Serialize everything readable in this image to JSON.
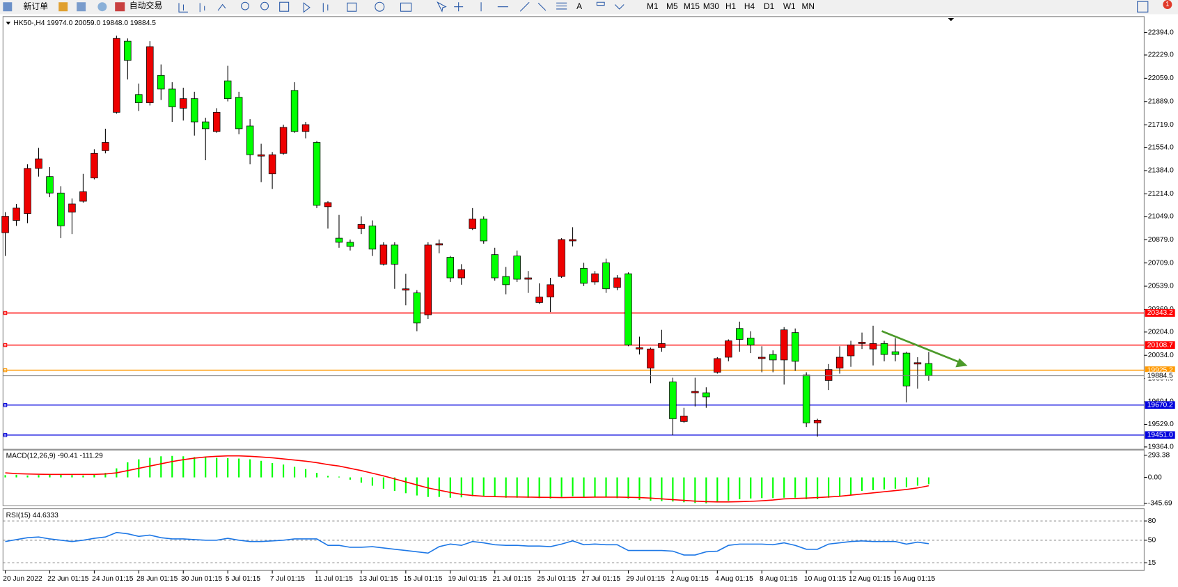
{
  "toolbar": {
    "new_order": "新订单",
    "auto_trading": "自动交易",
    "text_tool": "A",
    "timeframes": [
      "M1",
      "M5",
      "M15",
      "M30",
      "H1",
      "H4",
      "D1",
      "W1",
      "MN"
    ],
    "notification_count": 1
  },
  "chart_data": [
    {
      "type": "candlestick",
      "title": "HK50-,H4  19974.0 20059.0 19848.0 19884.5",
      "categories": [
        "20 Jun 2022",
        null,
        null,
        null,
        "22 Jun 01:15",
        null,
        null,
        null,
        "24 Jun 01:15",
        null,
        null,
        null,
        "28 Jun 01:15",
        null,
        null,
        null,
        "30 Jun 01:15",
        null,
        null,
        null,
        "5 Jul 01:15",
        null,
        null,
        null,
        "7 Jul 01:15",
        null,
        null,
        null,
        "11 Jul 01:15",
        null,
        null,
        null,
        "13 Jul 01:15",
        null,
        null,
        null,
        "15 Jul 01:15",
        null,
        null,
        null,
        "19 Jul 01:15",
        null,
        null,
        null,
        "21 Jul 01:15",
        null,
        null,
        null,
        "25 Jul 01:15",
        null,
        null,
        null,
        "27 Jul 01:15",
        null,
        null,
        null,
        "29 Jul 01:15",
        null,
        null,
        null,
        "2 Aug 01:15",
        null,
        null,
        null,
        "4 Aug 01:15",
        null,
        null,
        null,
        "8 Aug 01:15",
        null,
        null,
        null,
        "10 Aug 01:15",
        null,
        null,
        null,
        "12 Aug 01:15",
        null,
        null,
        null,
        "16 Aug 01:15",
        null,
        null,
        null
      ],
      "open": [
        20930,
        21020,
        21070,
        21400,
        21340,
        21220,
        21080,
        21160,
        21330,
        21530,
        21810,
        22330,
        21940,
        21880,
        22080,
        21980,
        21840,
        21910,
        21740,
        21670,
        22040,
        21920,
        21710,
        21490,
        21360,
        21510,
        21970,
        21670,
        21590,
        21120,
        20890,
        20860,
        20960,
        20980,
        20700,
        20840,
        20510,
        20490,
        20330,
        20840,
        20750,
        20600,
        20960,
        21030,
        20770,
        20610,
        20760,
        20590,
        20420,
        20460,
        20610,
        20870,
        20670,
        20570,
        20710,
        20530,
        20630,
        20080,
        19940,
        20090,
        19840,
        19550,
        19760,
        19760,
        19910,
        20020,
        20230,
        20160,
        20010,
        20040,
        20000,
        20200,
        19890,
        19540,
        19850,
        19940,
        20030,
        20120,
        20080,
        20120,
        20060,
        20050,
        19970,
        19974
      ],
      "high": [
        21080,
        21140,
        21430,
        21550,
        21410,
        21270,
        21180,
        21360,
        21540,
        21690,
        22370,
        22350,
        22020,
        22330,
        22160,
        22030,
        21990,
        21960,
        21770,
        21840,
        22150,
        21960,
        21760,
        21580,
        21520,
        21720,
        22030,
        21740,
        21600,
        21160,
        21060,
        20880,
        21050,
        21020,
        20860,
        20860,
        20630,
        20510,
        20860,
        20880,
        20760,
        20700,
        21110,
        21050,
        20820,
        20680,
        20800,
        20650,
        20560,
        20600,
        20890,
        20970,
        20710,
        20650,
        20740,
        20620,
        20640,
        20170,
        20090,
        20220,
        19870,
        19650,
        19870,
        19800,
        20020,
        20150,
        20280,
        20210,
        20100,
        20070,
        20240,
        20230,
        19910,
        19570,
        19970,
        20100,
        20140,
        20200,
        20250,
        20140,
        20160,
        20060,
        20020,
        20059
      ],
      "low": [
        20760,
        20980,
        21000,
        21340,
        21190,
        20890,
        20920,
        21150,
        21320,
        21510,
        21800,
        22050,
        21820,
        21860,
        21900,
        21740,
        21750,
        21640,
        21460,
        21660,
        21890,
        21650,
        21430,
        21300,
        21250,
        21500,
        21660,
        21620,
        21110,
        20960,
        20820,
        20800,
        20920,
        20760,
        20690,
        20520,
        20400,
        20210,
        20300,
        20780,
        20570,
        20550,
        20950,
        20850,
        20580,
        20480,
        20570,
        20490,
        20410,
        20350,
        20600,
        20830,
        20540,
        20550,
        20490,
        20510,
        20100,
        20040,
        19830,
        20060,
        19450,
        19540,
        19660,
        19650,
        19900,
        19990,
        20060,
        20050,
        19910,
        19910,
        19820,
        19920,
        19510,
        19440,
        19780,
        19900,
        19950,
        20080,
        19960,
        19990,
        19990,
        19690,
        19790,
        19848
      ],
      "close": [
        21050,
        21110,
        21400,
        21470,
        21220,
        20980,
        21140,
        21230,
        21510,
        21590,
        22350,
        22190,
        21880,
        22290,
        21980,
        21850,
        21910,
        21740,
        21690,
        21810,
        21910,
        21690,
        21500,
        21500,
        21500,
        21700,
        21670,
        21720,
        21130,
        21150,
        20860,
        20830,
        20990,
        20810,
        20840,
        20700,
        20520,
        20270,
        20840,
        20850,
        20600,
        20660,
        21030,
        20870,
        20600,
        20550,
        20590,
        20600,
        20460,
        20550,
        20880,
        20880,
        20560,
        20630,
        20520,
        20600,
        20110,
        20090,
        20080,
        20120,
        19570,
        19590,
        19770,
        19730,
        20010,
        20140,
        20150,
        20110,
        20020,
        20000,
        20220,
        19990,
        19540,
        19560,
        19930,
        20020,
        20110,
        20130,
        20120,
        20040,
        20040,
        19810,
        19980,
        19884.5
      ],
      "up_color": "#ee0000",
      "down_color": "#00ff00",
      "price_line_color": "#808080",
      "ylim": [
        19347,
        22510
      ],
      "yticks": [
        {
          "value": 22394,
          "label": "22394.0"
        },
        {
          "value": 22229,
          "label": "22229.0"
        },
        {
          "value": 22059,
          "label": "22059.0"
        },
        {
          "value": 21889,
          "label": "21889.0"
        },
        {
          "value": 21719,
          "label": "21719.0"
        },
        {
          "value": 21554,
          "label": "21554.0"
        },
        {
          "value": 21384,
          "label": "21384.0"
        },
        {
          "value": 21214,
          "label": "21214.0"
        },
        {
          "value": 21049,
          "label": "21049.0"
        },
        {
          "value": 20879,
          "label": "20879.0"
        },
        {
          "value": 20709,
          "label": "20709.0"
        },
        {
          "value": 20539,
          "label": "20539.0"
        },
        {
          "value": 20369,
          "label": "20369.0"
        },
        {
          "value": 20204,
          "label": "20204.0"
        },
        {
          "value": 20034,
          "label": "20034.0"
        },
        {
          "value": 19864,
          "label": "19864.0"
        },
        {
          "value": 19694,
          "label": "19694.0"
        },
        {
          "value": 19529,
          "label": "19529.0"
        },
        {
          "value": 19364,
          "label": "19364.0"
        }
      ],
      "levels": [
        {
          "value": 20343.2,
          "color": "#ff0000"
        },
        {
          "value": 20108.7,
          "color": "#ff0000"
        },
        {
          "value": 19925.2,
          "color": "#ff9900"
        },
        {
          "value": 19670.2,
          "color": "#0000dd"
        },
        {
          "value": 19451,
          "label": "19451.0",
          "color": "#0000dd"
        }
      ]
    },
    {
      "type": "combo",
      "title": "MACD(12,26,9) -90.41 -111.29",
      "ylim": [
        -376,
        363
      ],
      "yticks": [
        293.38,
        {
          "value": 0,
          "label": "0.00"
        },
        -345.69
      ],
      "series": [
        {
          "kind": "bar",
          "color": "#00ff00",
          "values": [
            30,
            35,
            25,
            30,
            35,
            40,
            30,
            25,
            40,
            60,
            120,
            200,
            240,
            260,
            280,
            285,
            280,
            270,
            265,
            260,
            255,
            250,
            240,
            220,
            190,
            170,
            140,
            110,
            60,
            20,
            10,
            -30,
            -70,
            -110,
            -150,
            -180,
            -210,
            -240,
            -260,
            -260,
            -270,
            -265,
            -250,
            -250,
            -260,
            -270,
            -270,
            -270,
            -275,
            -280,
            -260,
            -250,
            -260,
            -265,
            -265,
            -275,
            -280,
            -300,
            -310,
            -315,
            -320,
            -330,
            -340,
            -345,
            -330,
            -310,
            -290,
            -280,
            -275,
            -275,
            -270,
            -270,
            -290,
            -290,
            -270,
            -250,
            -230,
            -180,
            -170,
            -160,
            -150,
            -130,
            -110,
            -90.41
          ]
        },
        {
          "kind": "line",
          "color": "#ff0000",
          "values": [
            60,
            50,
            45,
            42,
            40,
            40,
            40,
            40,
            40,
            45,
            60,
            90,
            120,
            150,
            180,
            210,
            235,
            255,
            270,
            280,
            285,
            285,
            280,
            270,
            260,
            245,
            230,
            215,
            195,
            170,
            150,
            120,
            90,
            55,
            20,
            -20,
            -60,
            -100,
            -140,
            -170,
            -200,
            -225,
            -240,
            -250,
            -255,
            -258,
            -260,
            -262,
            -264,
            -266,
            -268,
            -266,
            -264,
            -262,
            -262,
            -262,
            -264,
            -268,
            -275,
            -285,
            -295,
            -305,
            -315,
            -322,
            -325,
            -325,
            -322,
            -318,
            -310,
            -300,
            -285,
            -280,
            -275,
            -268,
            -260,
            -250,
            -235,
            -220,
            -205,
            -190,
            -175,
            -160,
            -140,
            -111.29
          ]
        }
      ]
    },
    {
      "type": "line",
      "title": "RSI(15) 44.6333",
      "ylim": [
        3,
        99
      ],
      "yticks": [
        80,
        50,
        15
      ],
      "grid": true,
      "series": [
        {
          "color": "#1e78e6",
          "values": [
            48,
            51,
            54,
            55,
            52,
            50,
            48,
            50,
            53,
            55,
            62,
            60,
            56,
            58,
            54,
            52,
            52,
            51,
            50,
            50,
            53,
            50,
            48,
            48,
            49,
            50,
            52,
            52,
            52,
            42,
            42,
            39,
            39,
            40,
            38,
            36,
            34,
            32,
            30,
            40,
            44,
            42,
            48,
            46,
            43,
            42,
            42,
            41,
            41,
            40,
            44,
            49,
            43,
            44,
            43,
            43,
            34,
            34,
            34,
            34,
            33,
            27,
            27,
            32,
            33,
            42,
            44,
            44,
            44,
            43,
            46,
            42,
            36,
            36,
            44,
            46,
            48,
            49,
            48,
            48,
            48,
            44,
            47,
            44.6333
          ]
        }
      ]
    }
  ]
}
